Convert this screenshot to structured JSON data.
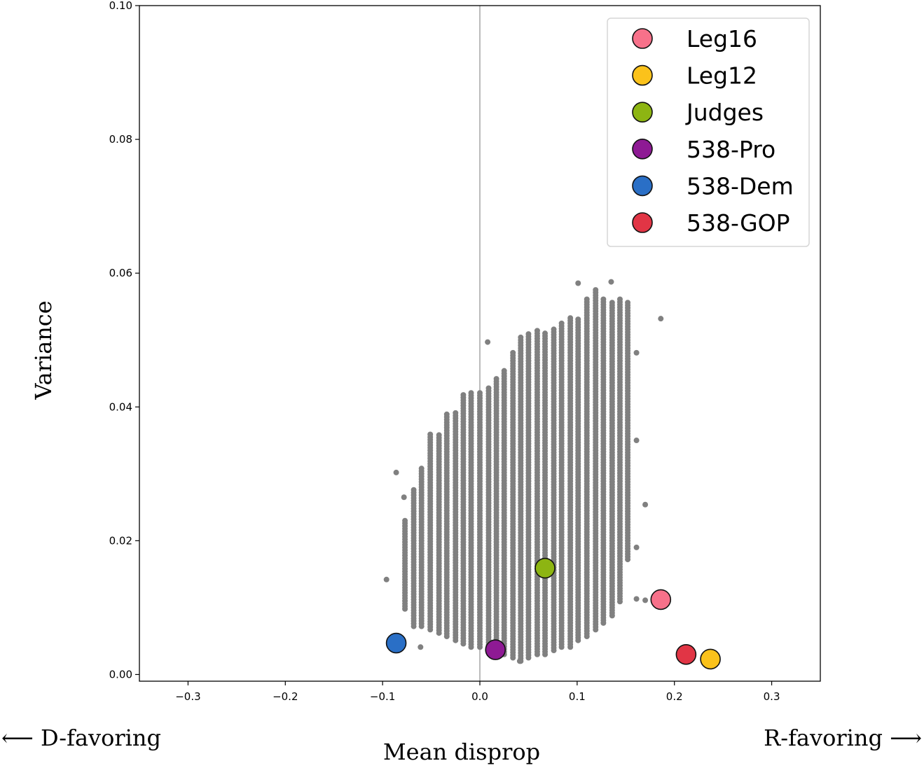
{
  "chart_data": {
    "type": "scatter",
    "xlabel": "Mean disprop",
    "ylabel": "Variance",
    "left_annotation": "⟵ D-favoring",
    "right_annotation": "R-favoring ⟶",
    "xlim": [
      -0.35,
      0.35
    ],
    "ylim": [
      -0.001,
      0.1
    ],
    "xticks": [
      -0.3,
      -0.2,
      -0.1,
      0.0,
      0.1,
      0.2,
      0.3
    ],
    "xtick_labels": [
      "−0.3",
      "−0.2",
      "−0.1",
      "0.0",
      "0.1",
      "0.2",
      "0.3"
    ],
    "yticks": [
      0.0,
      0.02,
      0.04,
      0.06,
      0.08,
      0.1
    ],
    "ytick_labels": [
      "0.00",
      "0.02",
      "0.04",
      "0.06",
      "0.08",
      "0.10"
    ],
    "grid": false,
    "reference_line_x": 0.0,
    "legend_position": "top-right",
    "ensemble": {
      "color": "#808080",
      "columns": [
        {
          "x": -0.077,
          "ymin": 0.0098,
          "ymax": 0.0231
        },
        {
          "x": -0.068,
          "ymin": 0.0072,
          "ymax": 0.0276
        },
        {
          "x": -0.06,
          "ymin": 0.0072,
          "ymax": 0.0308
        },
        {
          "x": -0.051,
          "ymin": 0.0067,
          "ymax": 0.036
        },
        {
          "x": -0.042,
          "ymin": 0.0062,
          "ymax": 0.036
        },
        {
          "x": -0.034,
          "ymin": 0.0057,
          "ymax": 0.0392
        },
        {
          "x": -0.025,
          "ymin": 0.0051,
          "ymax": 0.0392
        },
        {
          "x": -0.017,
          "ymin": 0.0046,
          "ymax": 0.0418
        },
        {
          "x": -0.009,
          "ymin": 0.0041,
          "ymax": 0.0423
        },
        {
          "x": 0.0,
          "ymin": 0.0041,
          "ymax": 0.0423
        },
        {
          "x": 0.009,
          "ymin": 0.0036,
          "ymax": 0.0428
        },
        {
          "x": 0.017,
          "ymin": 0.003,
          "ymax": 0.0444
        },
        {
          "x": 0.025,
          "ymin": 0.003,
          "ymax": 0.0454
        },
        {
          "x": 0.034,
          "ymin": 0.0025,
          "ymax": 0.0481
        },
        {
          "x": 0.042,
          "ymin": 0.002,
          "ymax": 0.0507
        },
        {
          "x": 0.05,
          "ymin": 0.0025,
          "ymax": 0.0512
        },
        {
          "x": 0.059,
          "ymin": 0.003,
          "ymax": 0.0517
        },
        {
          "x": 0.067,
          "ymin": 0.003,
          "ymax": 0.0512
        },
        {
          "x": 0.076,
          "ymin": 0.0036,
          "ymax": 0.0517
        },
        {
          "x": 0.084,
          "ymin": 0.0041,
          "ymax": 0.0528
        },
        {
          "x": 0.093,
          "ymin": 0.0041,
          "ymax": 0.0533
        },
        {
          "x": 0.101,
          "ymin": 0.0051,
          "ymax": 0.0533
        },
        {
          "x": 0.11,
          "ymin": 0.0057,
          "ymax": 0.0564
        },
        {
          "x": 0.119,
          "ymin": 0.0067,
          "ymax": 0.0575
        },
        {
          "x": 0.127,
          "ymin": 0.0077,
          "ymax": 0.0564
        },
        {
          "x": 0.136,
          "ymin": 0.0088,
          "ymax": 0.0559
        },
        {
          "x": 0.144,
          "ymin": 0.0109,
          "ymax": 0.0564
        },
        {
          "x": 0.152,
          "ymin": 0.0172,
          "ymax": 0.0559
        }
      ],
      "outliers": [
        {
          "x": -0.086,
          "y": 0.0302
        },
        {
          "x": -0.096,
          "y": 0.0142
        },
        {
          "x": -0.078,
          "y": 0.0265
        },
        {
          "x": 0.008,
          "y": 0.0497
        },
        {
          "x": 0.186,
          "y": 0.0532
        },
        {
          "x": 0.17,
          "y": 0.0254
        },
        {
          "x": 0.161,
          "y": 0.0113
        },
        {
          "x": 0.17,
          "y": 0.0111
        },
        {
          "x": -0.061,
          "y": 0.0041
        },
        {
          "x": 0.041,
          "y": 0.002
        },
        {
          "x": 0.101,
          "y": 0.0585
        },
        {
          "x": 0.135,
          "y": 0.0587
        },
        {
          "x": 0.161,
          "y": 0.0481
        },
        {
          "x": 0.161,
          "y": 0.019
        },
        {
          "x": 0.161,
          "y": 0.035
        }
      ]
    },
    "series": [
      {
        "name": "Leg16",
        "color": "#f7718a",
        "x": 0.186,
        "y": 0.0112
      },
      {
        "name": "Leg12",
        "color": "#fbc21b",
        "x": 0.237,
        "y": 0.0023
      },
      {
        "name": "Judges",
        "color": "#8db512",
        "x": 0.067,
        "y": 0.0159
      },
      {
        "name": "538-Pro",
        "color": "#8e1a94",
        "x": 0.016,
        "y": 0.0037
      },
      {
        "name": "538-Dem",
        "color": "#2a6fc6",
        "x": -0.086,
        "y": 0.0047
      },
      {
        "name": "538-GOP",
        "color": "#e13545",
        "x": 0.212,
        "y": 0.003
      }
    ]
  }
}
